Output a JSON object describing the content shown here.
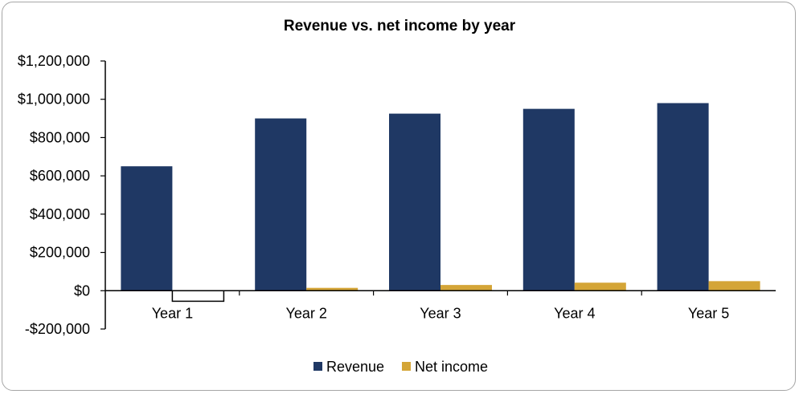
{
  "chart_data": {
    "type": "bar",
    "title": "Revenue vs. net income by year",
    "categories": [
      "Year 1",
      "Year 2",
      "Year 3",
      "Year 4",
      "Year 5"
    ],
    "series": [
      {
        "name": "Revenue",
        "values": [
          650000,
          900000,
          925000,
          950000,
          980000
        ],
        "color": "#1f3864"
      },
      {
        "name": "Net income",
        "values": [
          -55000,
          15000,
          30000,
          42000,
          50000
        ],
        "color": "#d4a537"
      }
    ],
    "ylim": [
      -200000,
      1200000
    ],
    "yticks": [
      -200000,
      0,
      200000,
      400000,
      600000,
      800000,
      1000000,
      1200000
    ],
    "ytick_labels": [
      "-$200,000",
      "$0",
      "$200,000",
      "$400,000",
      "$600,000",
      "$800,000",
      "$1,000,000",
      "$1,200,000"
    ],
    "negative_bar_style": "white fill with black outline",
    "grid": false,
    "legend_position": "bottom"
  }
}
